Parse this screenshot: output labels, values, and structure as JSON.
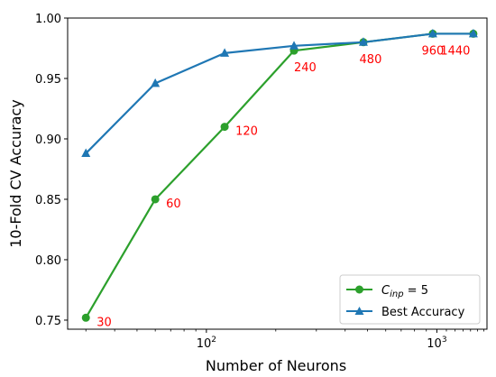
{
  "chart_data": {
    "type": "line",
    "xscale": "log",
    "xlim": [
      25,
      1650
    ],
    "ylim": [
      0.7425,
      1.0
    ],
    "xlabel": "Number of Neurons",
    "ylabel": "10-Fold CV Accuracy",
    "x_ticks": [
      {
        "value": 100,
        "base": "10",
        "exp": "2"
      },
      {
        "value": 1000,
        "base": "10",
        "exp": "3"
      }
    ],
    "y_ticks": [
      "0.75",
      "0.80",
      "0.85",
      "0.90",
      "0.95",
      "1.00"
    ],
    "x": [
      30,
      60,
      120,
      240,
      480,
      960,
      1440
    ],
    "series": [
      {
        "name_main": "C",
        "name_sub": "inp",
        "name_rest": " = 5",
        "color": "#2ca02c",
        "marker": "circle",
        "values": [
          0.752,
          0.85,
          0.91,
          0.973,
          0.98,
          0.987,
          0.987
        ]
      },
      {
        "name": "Best Accuracy",
        "color": "#1f77b4",
        "marker": "triangle",
        "values": [
          0.888,
          0.946,
          0.971,
          0.977,
          0.98,
          0.987,
          0.987
        ]
      }
    ],
    "annotations": [
      {
        "text": "30",
        "x": 30,
        "y": 0.752
      },
      {
        "text": "60",
        "x": 60,
        "y": 0.85
      },
      {
        "text": "120",
        "x": 120,
        "y": 0.91
      },
      {
        "text": "240",
        "x": 240,
        "y": 0.973
      },
      {
        "text": "480",
        "x": 480,
        "y": 0.98
      },
      {
        "text": "960",
        "x": 960,
        "y": 0.987
      },
      {
        "text": "1440",
        "x": 1440,
        "y": 0.987
      }
    ],
    "annotation_color": "#ff0000",
    "grid": false,
    "legend": "lower-right"
  }
}
